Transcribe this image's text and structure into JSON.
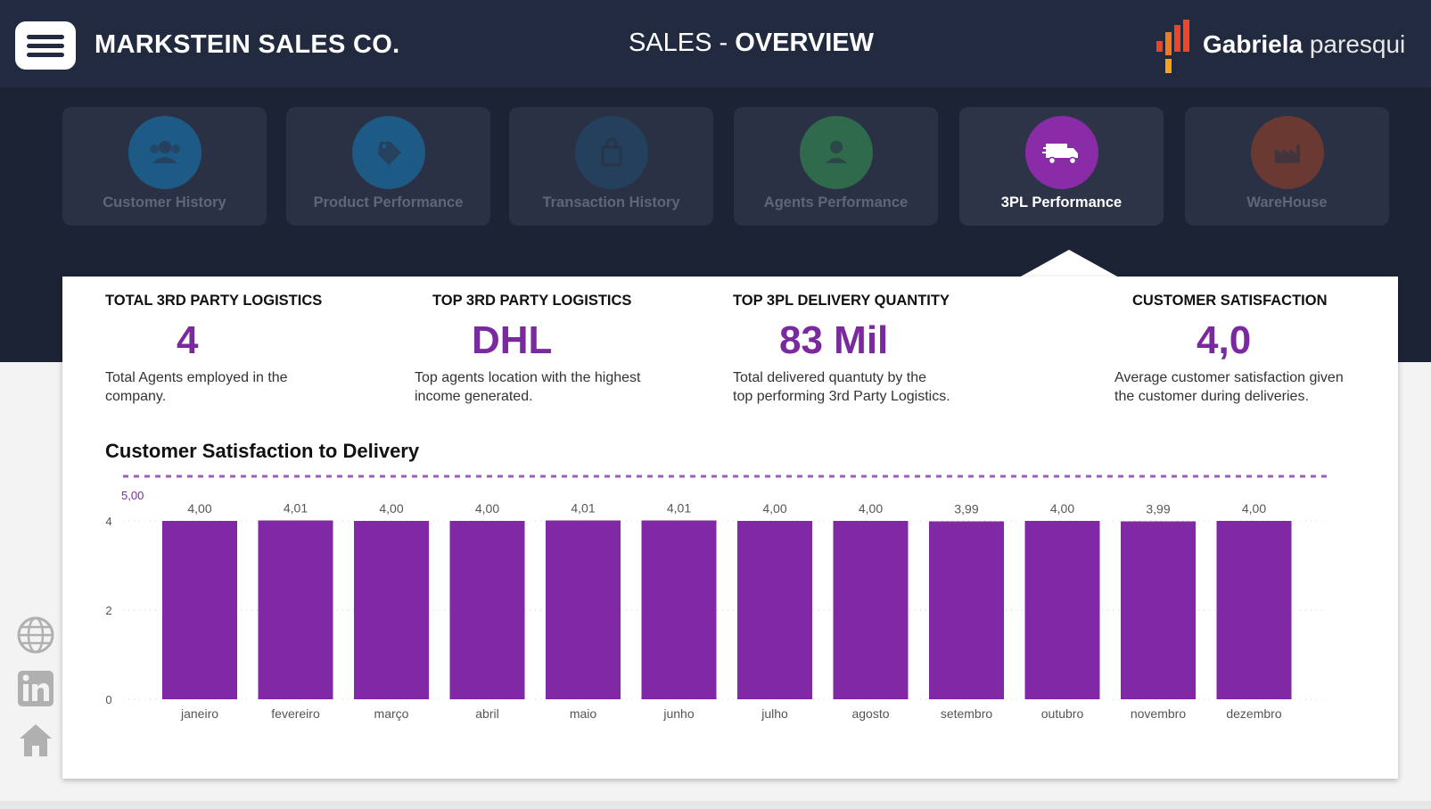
{
  "header": {
    "company": "MARKSTEIN SALES CO.",
    "title_prefix": "SALES - ",
    "title_bold": "OVERVIEW",
    "logo_first": "Gabriela",
    "logo_last": "paresqui"
  },
  "tabs": [
    {
      "label": "Customer History",
      "icon": "customers-icon",
      "color": "#1e5a86"
    },
    {
      "label": "Product Performance",
      "icon": "tag-icon",
      "color": "#1e5a86"
    },
    {
      "label": "Transaction History",
      "icon": "shopping-bag-icon",
      "color": "#24405d"
    },
    {
      "label": "Agents Performance",
      "icon": "agent-icon",
      "color": "#2e6a4b"
    },
    {
      "label": "3PL Performance",
      "icon": "truck-icon",
      "color": "#8a2ca8",
      "active": true
    },
    {
      "label": "WareHouse",
      "icon": "factory-icon",
      "color": "#6a3a32"
    }
  ],
  "kpis": [
    {
      "title": "TOTAL 3RD PARTY LOGISTICS",
      "value": "4",
      "desc_line1": "Total Agents employed in the",
      "desc_line2": "company."
    },
    {
      "title": "TOP 3RD PARTY LOGISTICS",
      "value": "DHL",
      "desc_line1": "Top agents location with the highest",
      "desc_line2": "income generated."
    },
    {
      "title": "TOP 3PL DELIVERY QUANTITY",
      "value": "83 Mil",
      "desc_line1": "Total delivered quantuty by the",
      "desc_line2": "top performing 3rd Party Logistics."
    },
    {
      "title": "CUSTOMER SATISFACTION",
      "value": "4,0",
      "desc_line1": "Average customer satisfaction given",
      "desc_line2": "the customer during deliveries."
    }
  ],
  "colors": {
    "accent": "#7a2a9e",
    "bar": "#8129a5",
    "header_bg": "#222a3f"
  },
  "chart_data": {
    "type": "bar",
    "title": "Customer Satisfaction to Delivery",
    "categories": [
      "janeiro",
      "fevereiro",
      "março",
      "abril",
      "maio",
      "junho",
      "julho",
      "agosto",
      "setembro",
      "outubro",
      "novembro",
      "dezembro"
    ],
    "values": [
      4.0,
      4.01,
      4.0,
      4.0,
      4.01,
      4.01,
      4.0,
      4.0,
      3.99,
      4.0,
      3.99,
      4.0
    ],
    "value_labels": [
      "4,00",
      "4,01",
      "4,00",
      "4,00",
      "4,01",
      "4,01",
      "4,00",
      "4,00",
      "3,99",
      "4,00",
      "3,99",
      "4,00"
    ],
    "yticks": [
      "0",
      "2",
      "4"
    ],
    "ytick_values": [
      0,
      2,
      4
    ],
    "ylim": [
      0,
      5
    ],
    "reference_line": {
      "value": 5,
      "label": "5,00"
    },
    "grid": "dotted horizontal",
    "xlabel": "",
    "ylabel": ""
  },
  "side_icons": [
    "globe-icon",
    "linkedin-icon",
    "home-icon"
  ]
}
